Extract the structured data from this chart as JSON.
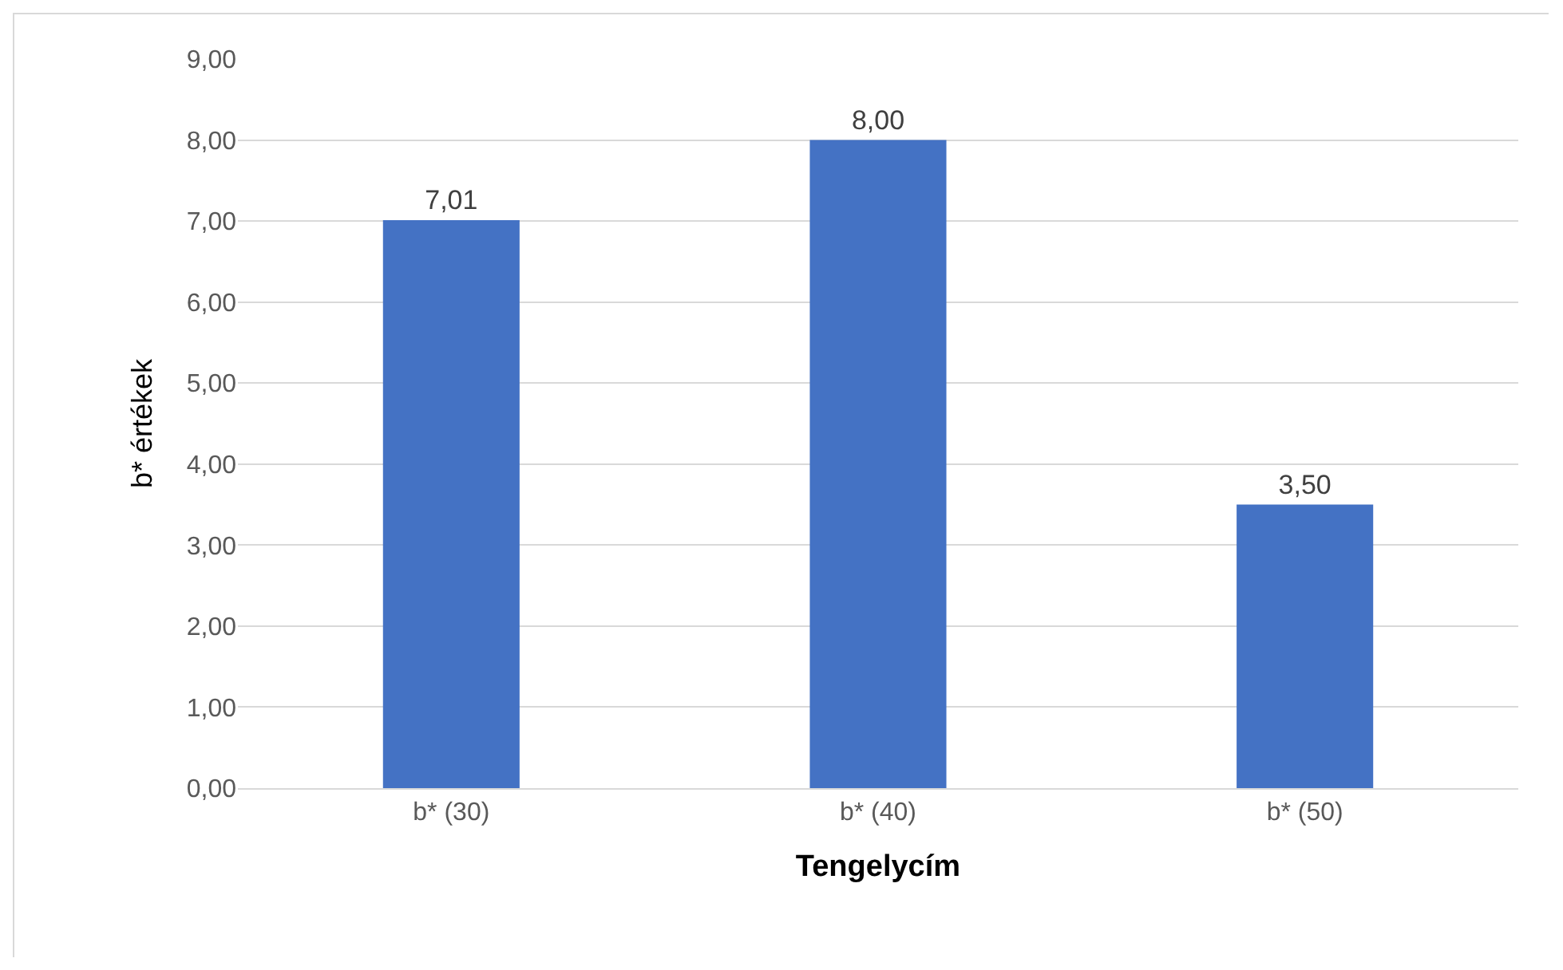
{
  "chart_data": {
    "type": "bar",
    "xlabel": "Tengelycím",
    "ylabel": "b* értékek",
    "categories": [
      "b* (30)",
      "b* (40)",
      "b* (50)"
    ],
    "values": [
      7.01,
      8.0,
      3.5
    ],
    "value_labels": [
      "7,01",
      "8,00",
      "3,50"
    ],
    "color": "#4472c4",
    "ylim": [
      0,
      9
    ],
    "yticks": [
      {
        "value": 0,
        "label": "0,00"
      },
      {
        "value": 1,
        "label": "1,00"
      },
      {
        "value": 2,
        "label": "2,00"
      },
      {
        "value": 3,
        "label": "3,00"
      },
      {
        "value": 4,
        "label": "4,00"
      },
      {
        "value": 5,
        "label": "5,00"
      },
      {
        "value": 6,
        "label": "6,00"
      },
      {
        "value": 7,
        "label": "7,00"
      },
      {
        "value": 8,
        "label": "8,00"
      },
      {
        "value": 9,
        "label": "9,00"
      }
    ],
    "grid": "y"
  }
}
